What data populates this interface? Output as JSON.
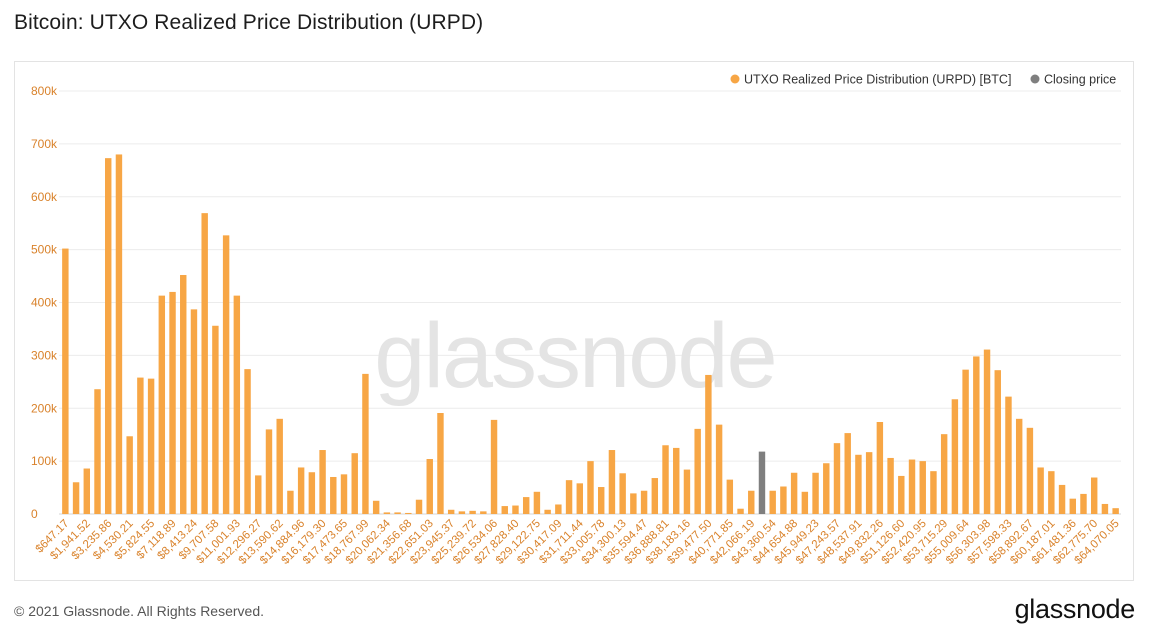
{
  "page": {
    "title": "Bitcoin: UTXO Realized Price Distribution (URPD)",
    "copyright": "© 2021 Glassnode. All Rights Reserved.",
    "brand": "glassnode"
  },
  "colors": {
    "bar": "#f7a645",
    "closing": "#7f7f7f",
    "axis_text": "#d9822b",
    "grid": "#ececec",
    "watermark": "#e4e4e4"
  },
  "chart_data": {
    "type": "bar",
    "title": "Bitcoin: UTXO Realized Price Distribution (URPD)",
    "watermark": "glassnode",
    "legend": [
      {
        "name": "UTXO Realized Price Distribution (URPD) [BTC]",
        "color": "#f7a645"
      },
      {
        "name": "Closing price",
        "color": "#7f7f7f"
      }
    ],
    "legend_position": "top-right",
    "ylim": [
      0,
      800000
    ],
    "yticks": [
      0,
      100000,
      200000,
      300000,
      400000,
      500000,
      600000,
      700000,
      800000
    ],
    "ytick_labels": [
      "0",
      "100k",
      "200k",
      "300k",
      "400k",
      "500k",
      "600k",
      "700k",
      "800k"
    ],
    "closing_index": 65,
    "x_tick_labels": [
      "$647.17",
      "$1,941.52",
      "$3,235.86",
      "$4,530.21",
      "$5,824.55",
      "$7,118.89",
      "$8,413.24",
      "$9,707.58",
      "$11,001.93",
      "$12,296.27",
      "$13,590.62",
      "$14,884.96",
      "$16,179.30",
      "$17,473.65",
      "$18,767.99",
      "$20,062.34",
      "$21,356.68",
      "$22,651.03",
      "$23,945.37",
      "$25,239.72",
      "$26,534.06",
      "$27,828.40",
      "$29,122.75",
      "$30,417.09",
      "$31,711.44",
      "$33,005.78",
      "$34,300.13",
      "$35,594.47",
      "$36,888.81",
      "$38,183.16",
      "$39,477.50",
      "$40,771.85",
      "$42,066.19",
      "$43,360.54",
      "$44,654.88",
      "$45,949.23",
      "$47,243.57",
      "$48,537.91",
      "$49,832.26",
      "$51,126.60",
      "$52,420.95",
      "$53,715.29",
      "$55,009.64",
      "$56,303.98",
      "$57,598.33",
      "$58,892.67",
      "$60,187.01",
      "$61,481.36",
      "$62,775.70",
      "$64,070.05"
    ],
    "values": [
      502000,
      60000,
      86000,
      236000,
      673000,
      680000,
      147000,
      258000,
      256000,
      413000,
      420000,
      452000,
      387000,
      569000,
      356000,
      527000,
      413000,
      274000,
      73000,
      160000,
      180000,
      44000,
      88000,
      79000,
      121000,
      70000,
      75000,
      115000,
      265000,
      25000,
      3000,
      3000,
      2000,
      27000,
      104000,
      191000,
      8000,
      5000,
      6000,
      5000,
      178000,
      15000,
      16000,
      32000,
      42000,
      8000,
      18000,
      64000,
      58000,
      100000,
      51000,
      121000,
      77000,
      39000,
      44000,
      68000,
      130000,
      125000,
      84000,
      161000,
      263000,
      169000,
      65000,
      10000,
      44000,
      118000,
      44000,
      52000,
      78000,
      42000,
      78000,
      96000,
      134000,
      153000,
      112000,
      117000,
      174000,
      106000,
      72000,
      103000,
      100000,
      81000,
      151000,
      217000,
      273000,
      298000,
      311000,
      272000,
      222000,
      180000,
      163000,
      88000,
      81000,
      55000,
      29000,
      38000,
      69000,
      19000,
      11000
    ]
  }
}
